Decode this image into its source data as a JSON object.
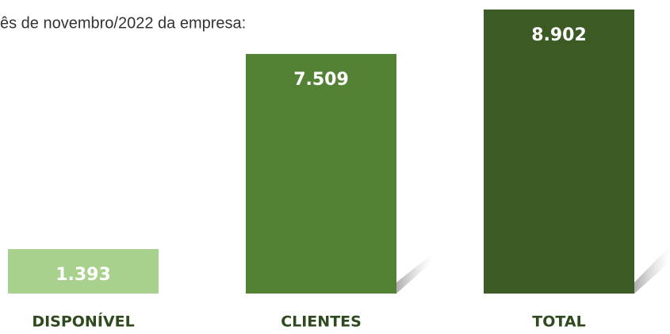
{
  "chart_data": {
    "type": "bar",
    "title": "ês de novembro/2022 da empresa:",
    "categories": [
      "DISPONÍVEL",
      "CLIENTES",
      "TOTAL"
    ],
    "values": [
      1393,
      7509,
      8902
    ],
    "value_labels": [
      "1.393",
      "7.509",
      "8.902"
    ],
    "colors": [
      "#a9d18e",
      "#548235",
      "#3b5a24"
    ]
  }
}
